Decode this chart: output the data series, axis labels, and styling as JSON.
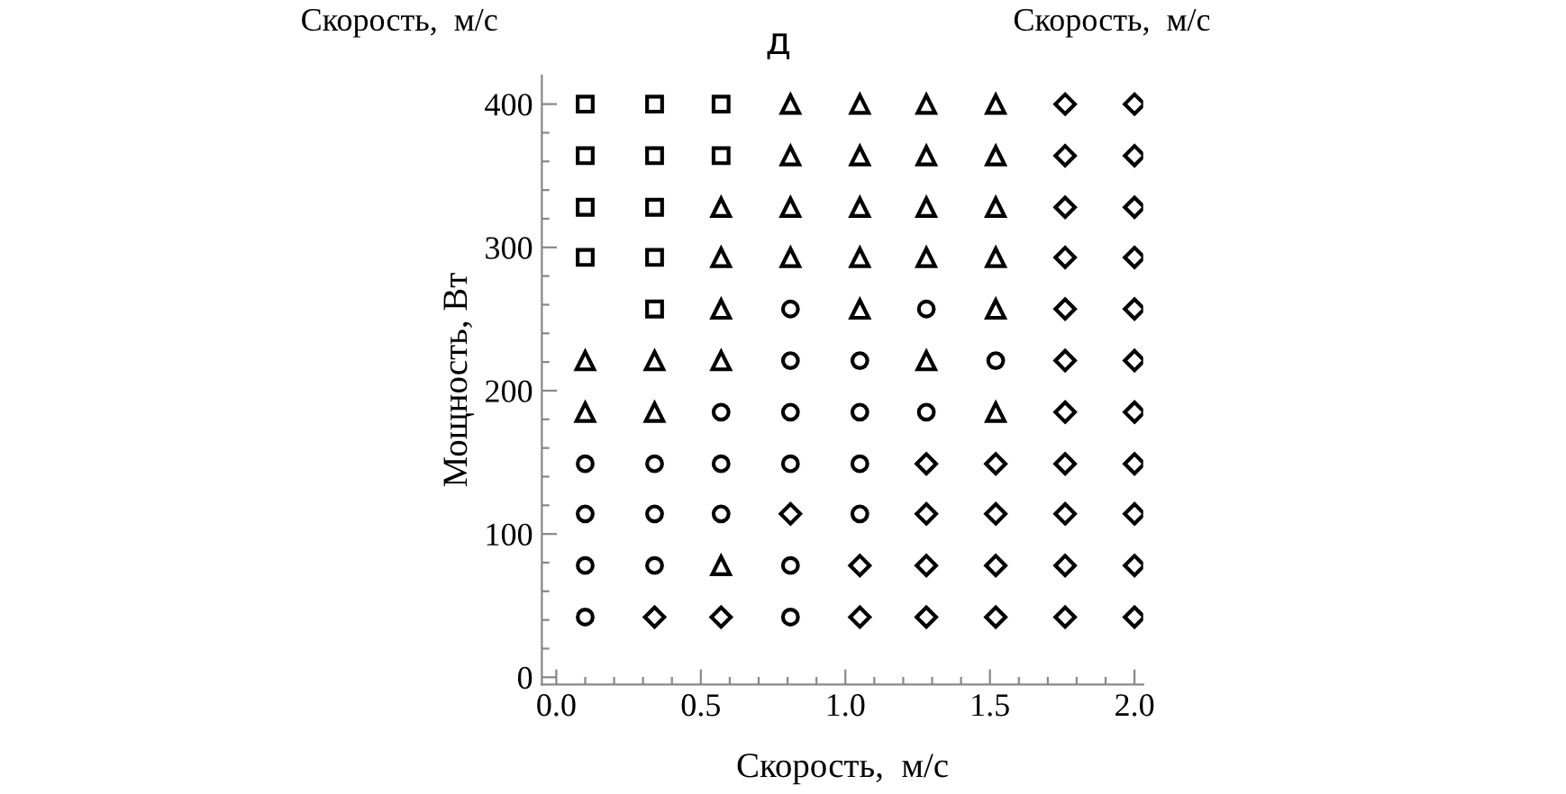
{
  "chart_data": {
    "type": "scatter",
    "title": "д",
    "xlabel": "Скорость,  м/с",
    "ylabel": "Мощность, Вт",
    "annotations": [
      "Скорость,  м/с",
      "Скорость,  м/с"
    ],
    "xlim": [
      -0.05,
      2.03
    ],
    "ylim": [
      -5,
      420
    ],
    "xticks": [
      {
        "value": 0,
        "label": "0.0"
      },
      {
        "value": 0.1,
        "label": null
      },
      {
        "value": 0.2,
        "label": null
      },
      {
        "value": 0.3,
        "label": null
      },
      {
        "value": 0.4,
        "label": null
      },
      {
        "value": 0.5,
        "label": "0.5"
      },
      {
        "value": 0.6,
        "label": null
      },
      {
        "value": 0.7,
        "label": null
      },
      {
        "value": 0.8,
        "label": null
      },
      {
        "value": 0.9,
        "label": null
      },
      {
        "value": 1.0,
        "label": "1.0"
      },
      {
        "value": 1.1,
        "label": null
      },
      {
        "value": 1.2,
        "label": null
      },
      {
        "value": 1.3,
        "label": null
      },
      {
        "value": 1.4,
        "label": null
      },
      {
        "value": 1.5,
        "label": "1.5"
      },
      {
        "value": 1.6,
        "label": null
      },
      {
        "value": 1.7,
        "label": null
      },
      {
        "value": 1.8,
        "label": null
      },
      {
        "value": 1.9,
        "label": null
      },
      {
        "value": 2.0,
        "label": "2.0"
      }
    ],
    "yticks": [
      0,
      {
        "value": 20,
        "label": null
      },
      {
        "value": 40,
        "label": null
      },
      {
        "value": 60,
        "label": null
      },
      {
        "value": 80,
        "label": null
      },
      100,
      {
        "value": 120,
        "label": null
      },
      {
        "value": 140,
        "label": null
      },
      {
        "value": 160,
        "label": null
      },
      {
        "value": 180,
        "label": null
      },
      200,
      {
        "value": 220,
        "label": null
      },
      {
        "value": 240,
        "label": null
      },
      {
        "value": 260,
        "label": null
      },
      {
        "value": 280,
        "label": null
      },
      300,
      {
        "value": 320,
        "label": null
      },
      {
        "value": 340,
        "label": null
      },
      {
        "value": 360,
        "label": null
      },
      {
        "value": 380,
        "label": null
      },
      400
    ],
    "grid": false,
    "legend": false,
    "series": [
      {
        "color": "#000000",
        "marker": "square",
        "x": [
          0.1,
          0.34,
          0.57,
          0.1,
          0.34,
          0.57,
          0.1,
          0.34,
          0.1,
          0.34,
          0.34
        ],
        "values": [
          400,
          400,
          400,
          364,
          364,
          364,
          328,
          328,
          293,
          293,
          257
        ]
      },
      {
        "color": "#000000",
        "marker": "triangle",
        "x": [
          0.81,
          1.05,
          1.28,
          1.52,
          0.81,
          1.05,
          1.28,
          1.52,
          0.57,
          0.81,
          1.05,
          1.28,
          1.52,
          0.57,
          0.81,
          1.05,
          1.28,
          1.52,
          0.57,
          1.05,
          1.52,
          0.1,
          0.34,
          0.57,
          1.28,
          0.1,
          0.34,
          1.52,
          0.57
        ],
        "values": [
          400,
          400,
          400,
          400,
          364,
          364,
          364,
          364,
          328,
          328,
          328,
          328,
          328,
          293,
          293,
          293,
          293,
          293,
          257,
          257,
          257,
          221,
          221,
          221,
          221,
          185,
          185,
          185,
          78
        ]
      },
      {
        "color": "#000000",
        "marker": "circle",
        "x": [
          0.81,
          1.28,
          0.81,
          1.05,
          1.52,
          0.57,
          0.81,
          1.05,
          1.28,
          0.1,
          0.34,
          0.57,
          0.81,
          1.05,
          0.1,
          0.34,
          0.57,
          1.05,
          0.1,
          0.34,
          0.81,
          0.1,
          0.81
        ],
        "values": [
          257,
          257,
          221,
          221,
          221,
          185,
          185,
          185,
          185,
          149,
          149,
          149,
          149,
          149,
          114,
          114,
          114,
          114,
          78,
          78,
          78,
          42,
          42
        ]
      },
      {
        "color": "#000000",
        "marker": "diamond",
        "x": [
          1.76,
          2.0,
          1.76,
          2.0,
          1.76,
          2.0,
          1.76,
          2.0,
          1.76,
          2.0,
          1.76,
          2.0,
          1.76,
          2.0,
          1.28,
          1.52,
          1.76,
          2.0,
          0.81,
          1.28,
          1.52,
          1.76,
          2.0,
          1.05,
          1.28,
          1.52,
          1.76,
          2.0,
          0.34,
          0.57,
          1.05,
          1.28,
          1.52,
          1.76,
          2.0
        ],
        "values": [
          400,
          400,
          364,
          364,
          328,
          328,
          293,
          293,
          257,
          257,
          221,
          221,
          185,
          185,
          149,
          149,
          149,
          149,
          114,
          114,
          114,
          114,
          114,
          78,
          78,
          78,
          78,
          78,
          42,
          42,
          42,
          42,
          42,
          42,
          42
        ]
      }
    ]
  }
}
